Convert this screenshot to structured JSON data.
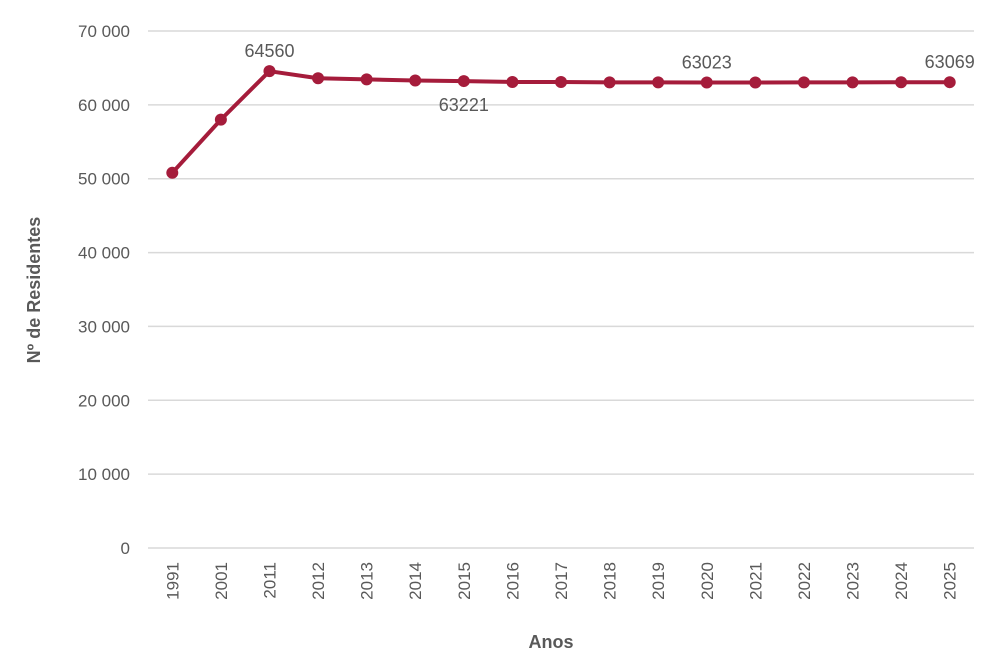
{
  "chart_data": {
    "type": "line",
    "xlabel": "Anos",
    "ylabel": "Nº de Residentes",
    "ylim": [
      0,
      70000
    ],
    "grid": true,
    "y_ticks": [
      "0",
      "10 000",
      "20 000",
      "30 000",
      "40 000",
      "50 000",
      "60 000",
      "70 000"
    ],
    "categories": [
      "1991",
      "2001",
      "2011",
      "2012",
      "2013",
      "2014",
      "2015",
      "2016",
      "2017",
      "2018",
      "2019",
      "2020",
      "2021",
      "2022",
      "2023",
      "2024",
      "2025"
    ],
    "series": [
      {
        "color": "#a51c3b",
        "values": [
          50800,
          58000,
          64560,
          63600,
          63450,
          63300,
          63221,
          63100,
          63100,
          63050,
          63050,
          63023,
          63030,
          63040,
          63050,
          63060,
          63069
        ]
      }
    ],
    "data_labels": [
      {
        "category": "2011",
        "text": "64560",
        "placement": "above"
      },
      {
        "category": "2015",
        "text": "63221",
        "placement": "below"
      },
      {
        "category": "2020",
        "text": "63023",
        "placement": "above"
      },
      {
        "category": "2025",
        "text": "63069",
        "placement": "above"
      }
    ]
  }
}
